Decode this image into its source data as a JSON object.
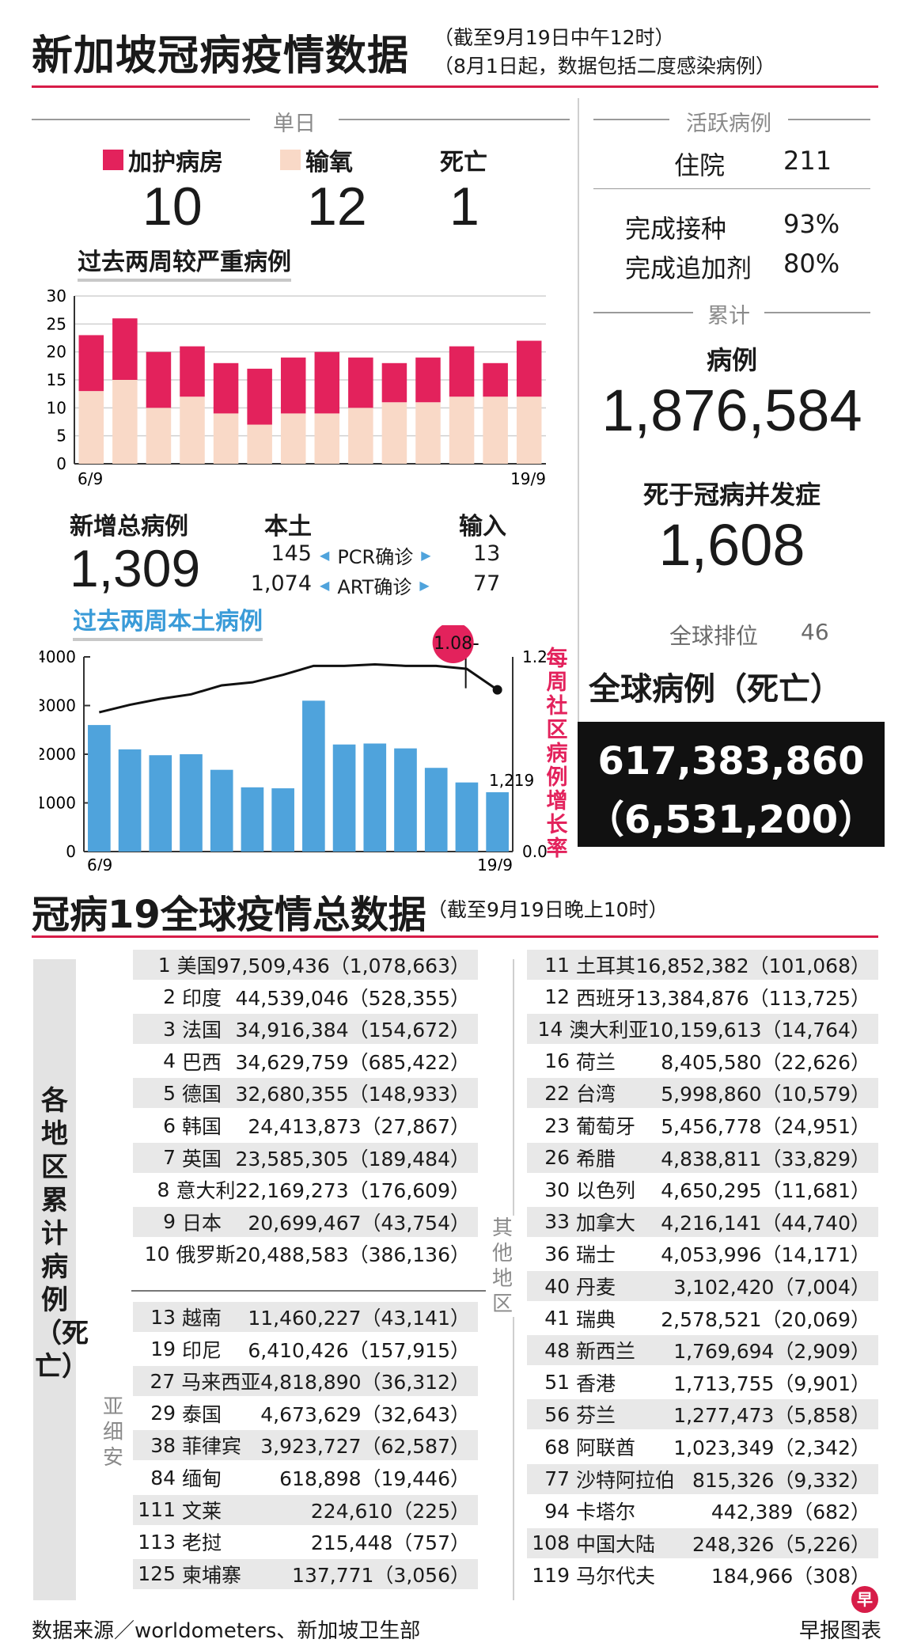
{
  "header": {
    "title": "新加坡冠病疫情数据",
    "note1": "（截至9月19日中午12时）",
    "note2": "（8月1日起，数据包括二度感染病例）"
  },
  "daily": {
    "label": "单日",
    "icu_label": "加护病房",
    "oxygen_label": "输氧",
    "death_label": "死亡",
    "icu": "10",
    "oxygen": "12",
    "death": "1",
    "icu_color": "#e3225c",
    "oxygen_color": "#f9d9c7"
  },
  "active": {
    "label": "活跃病例",
    "hosp_label": "住院",
    "hosp": "211",
    "vacc_label": "完成接种",
    "vacc": "93%",
    "booster_label": "完成追加剂",
    "booster": "80%"
  },
  "cumulative": {
    "label": "累计",
    "cases_label": "病例",
    "cases": "1,876,584",
    "deaths_label": "死于冠病并发症",
    "deaths": "1,608",
    "rank_label": "全球排位",
    "rank": "46"
  },
  "global": {
    "title": "全球病例（死亡）",
    "cases": "617,383,860",
    "deaths": "（6,531,200）"
  },
  "new_cases": {
    "label": "新增总病例",
    "total": "1,309",
    "local_label": "本土",
    "import_label": "输入",
    "pcr_label": "PCR确诊",
    "art_label": "ART确诊",
    "pcr_local": "145",
    "pcr_import": "13",
    "art_local": "1,074",
    "art_import": "77"
  },
  "chart_data": [
    {
      "type": "bar",
      "title": "过去两周较严重病例",
      "categories": [
        "6/9",
        "",
        "",
        "",
        "",
        "",
        "",
        "",
        "",
        "",
        "",
        "",
        "",
        "19/9"
      ],
      "series": [
        {
          "name": "输氧",
          "values": [
            13,
            15,
            10,
            12,
            9,
            7,
            9,
            9,
            10,
            11,
            11,
            12,
            12,
            12
          ],
          "color": "#f9d9c7"
        },
        {
          "name": "加护病房",
          "values": [
            10,
            11,
            10,
            9,
            9,
            10,
            10,
            11,
            9,
            7,
            8,
            9,
            6,
            10
          ],
          "color": "#e3225c"
        }
      ],
      "stacked": true,
      "ylim": [
        0,
        30
      ],
      "yticks": [
        "0",
        "5",
        "10",
        "15",
        "20",
        "25",
        "30"
      ],
      "grid": true
    },
    {
      "type": "bar",
      "title": "过去两周本土病例",
      "categories": [
        "6/9",
        "",
        "",
        "",
        "",
        "",
        "",
        "",
        "",
        "",
        "",
        "",
        "",
        "19/9"
      ],
      "values": [
        2600,
        2100,
        1980,
        2000,
        1680,
        1320,
        1300,
        3100,
        2200,
        2220,
        2120,
        1720,
        1420,
        1219
      ],
      "bar_color": "#4fa3dc",
      "ylim": [
        0,
        4000
      ],
      "yticks": [
        "0",
        "1000",
        "2000",
        "3000",
        "4000"
      ],
      "value_label": "1,219",
      "line": {
        "name": "每周社区病例增长率",
        "values": [
          0.93,
          0.98,
          1.02,
          1.05,
          1.11,
          1.13,
          1.18,
          1.24,
          1.24,
          1.25,
          1.24,
          1.24,
          1.22,
          1.08
        ],
        "ylim": [
          0,
          1.2
        ],
        "yticks": [
          "0.0",
          "1.2"
        ],
        "last_label": "1.08",
        "color": "#e3225c"
      }
    }
  ],
  "world": {
    "title": "冠病19全球疫情总数据",
    "note": "（截至9月19日晚上10时）",
    "side_label": "各地区累计病例（死亡）",
    "asean_label": "亚细安",
    "other_label": "其他地区",
    "top": [
      {
        "rank": "1",
        "name": "美国",
        "value": "97,509,436（1,078,663）"
      },
      {
        "rank": "2",
        "name": "印度",
        "value": "44,539,046（528,355）"
      },
      {
        "rank": "3",
        "name": "法国",
        "value": "34,916,384（154,672）"
      },
      {
        "rank": "4",
        "name": "巴西",
        "value": "34,629,759（685,422）"
      },
      {
        "rank": "5",
        "name": "德国",
        "value": "32,680,355（148,933）"
      },
      {
        "rank": "6",
        "name": "韩国",
        "value": "24,413,873（27,867）"
      },
      {
        "rank": "7",
        "name": "英国",
        "value": "23,585,305（189,484）"
      },
      {
        "rank": "8",
        "name": "意大利",
        "value": "22,169,273（176,609）"
      },
      {
        "rank": "9",
        "name": "日本",
        "value": "20,699,467（43,754）"
      },
      {
        "rank": "10",
        "name": "俄罗斯",
        "value": "20,488,583（386,136）"
      }
    ],
    "asean": [
      {
        "rank": "13",
        "name": "越南",
        "value": "11,460,227（43,141）"
      },
      {
        "rank": "19",
        "name": "印尼",
        "value": "6,410,426（157,915）"
      },
      {
        "rank": "27",
        "name": "马来西亚",
        "value": "4,818,890（36,312）"
      },
      {
        "rank": "29",
        "name": "泰国",
        "value": "4,673,629（32,643）"
      },
      {
        "rank": "38",
        "name": "菲律宾",
        "value": "3,923,727（62,587）"
      },
      {
        "rank": "84",
        "name": "缅甸",
        "value": "618,898（19,446）"
      },
      {
        "rank": "111",
        "name": "文莱",
        "value": "224,610（225）"
      },
      {
        "rank": "113",
        "name": "老挝",
        "value": "215,448（757）"
      },
      {
        "rank": "125",
        "name": "柬埔寨",
        "value": "137,771（3,056）"
      }
    ],
    "others": [
      {
        "rank": "11",
        "name": "土耳其",
        "value": "16,852,382（101,068）"
      },
      {
        "rank": "12",
        "name": "西班牙",
        "value": "13,384,876（113,725）"
      },
      {
        "rank": "14",
        "name": "澳大利亚",
        "value": "10,159,613（14,764）"
      },
      {
        "rank": "16",
        "name": "荷兰",
        "value": "8,405,580（22,626）"
      },
      {
        "rank": "22",
        "name": "台湾",
        "value": "5,998,860（10,579）"
      },
      {
        "rank": "23",
        "name": "葡萄牙",
        "value": "5,456,778（24,951）"
      },
      {
        "rank": "26",
        "name": "希腊",
        "value": "4,838,811（33,829）"
      },
      {
        "rank": "30",
        "name": "以色列",
        "value": "4,650,295（11,681）"
      },
      {
        "rank": "33",
        "name": "加拿大",
        "value": "4,216,141（44,740）"
      },
      {
        "rank": "36",
        "name": "瑞士",
        "value": "4,053,996（14,171）"
      },
      {
        "rank": "40",
        "name": "丹麦",
        "value": "3,102,420（7,004）"
      },
      {
        "rank": "41",
        "name": "瑞典",
        "value": "2,578,521（20,069）"
      },
      {
        "rank": "48",
        "name": "新西兰",
        "value": "1,769,694（2,909）"
      },
      {
        "rank": "51",
        "name": "香港",
        "value": "1,713,755（9,901）"
      },
      {
        "rank": "56",
        "name": "芬兰",
        "value": "1,277,473（5,858）"
      },
      {
        "rank": "68",
        "name": "阿联酋",
        "value": "1,023,349（2,342）"
      },
      {
        "rank": "77",
        "name": "沙特阿拉伯",
        "value": "815,326（9,332）"
      },
      {
        "rank": "94",
        "name": "卡塔尔",
        "value": "442,389（682）"
      },
      {
        "rank": "108",
        "name": "中国大陆",
        "value": "248,326（5,226）"
      },
      {
        "rank": "119",
        "name": "马尔代夫",
        "value": "184,966（308）"
      }
    ]
  },
  "footer": {
    "source": "数据来源／worldometers、新加坡卫生部",
    "credit": "早报图表",
    "logo_char": "早"
  }
}
